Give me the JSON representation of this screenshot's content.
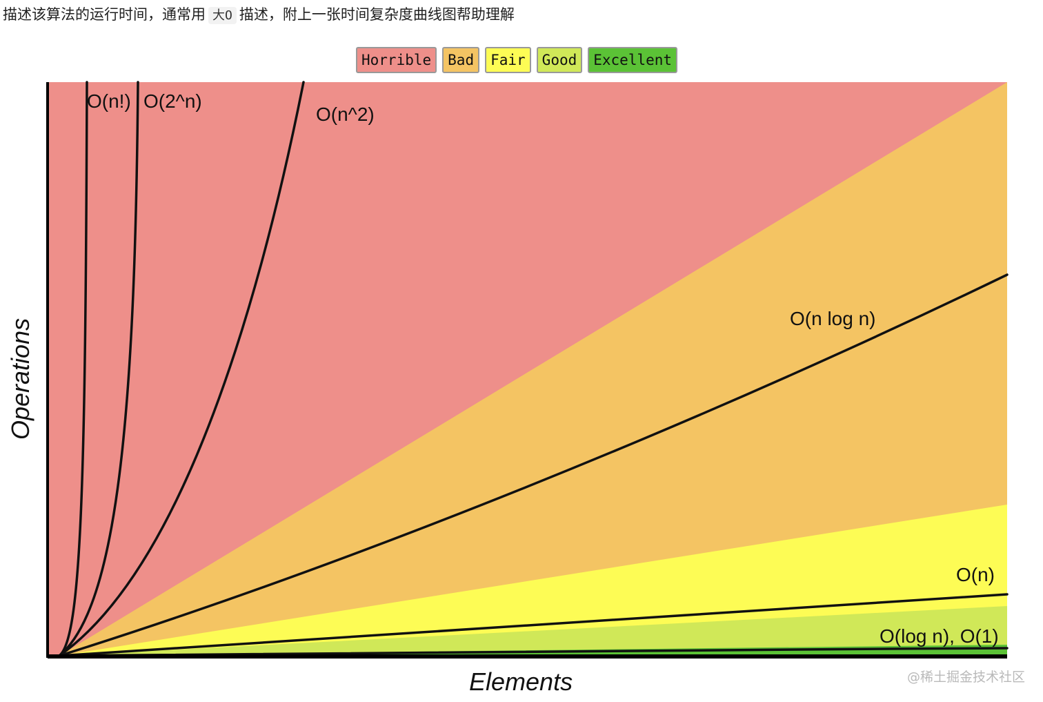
{
  "intro": {
    "text_before": "描述该算法的运行时间，通常用",
    "code": "大O",
    "text_after": "描述，附上一张时间复杂度曲线图帮助理解"
  },
  "legend": [
    {
      "label": "Horrible",
      "color": "#ee8f8a"
    },
    {
      "label": "Bad",
      "color": "#f4c463"
    },
    {
      "label": "Fair",
      "color": "#fdfc55"
    },
    {
      "label": "Good",
      "color": "#d0e858"
    },
    {
      "label": "Excellent",
      "color": "#5bc236"
    }
  ],
  "watermark": "@稀土掘金技术社区",
  "chart_data": {
    "type": "line",
    "title": "",
    "xlabel": "Elements",
    "ylabel": "Operations",
    "grid": false,
    "legend_position": "top-center",
    "colors": {
      "horrible": "#ee8f8a",
      "bad": "#f4c463",
      "fair": "#fdfc55",
      "good": "#d0e858",
      "excellent": "#5bc236",
      "curve": "#111111"
    },
    "series": [
      {
        "name": "O(n!)",
        "label": "O(n!)"
      },
      {
        "name": "O(2^n)",
        "label": "O(2^n)"
      },
      {
        "name": "O(n^2)",
        "label": "O(n^2)"
      },
      {
        "name": "O(n log n)",
        "label": "O(n log n)"
      },
      {
        "name": "O(n)",
        "label": "O(n)"
      },
      {
        "name": "O(log n), O(1)",
        "label": "O(log n), O(1)"
      }
    ]
  }
}
